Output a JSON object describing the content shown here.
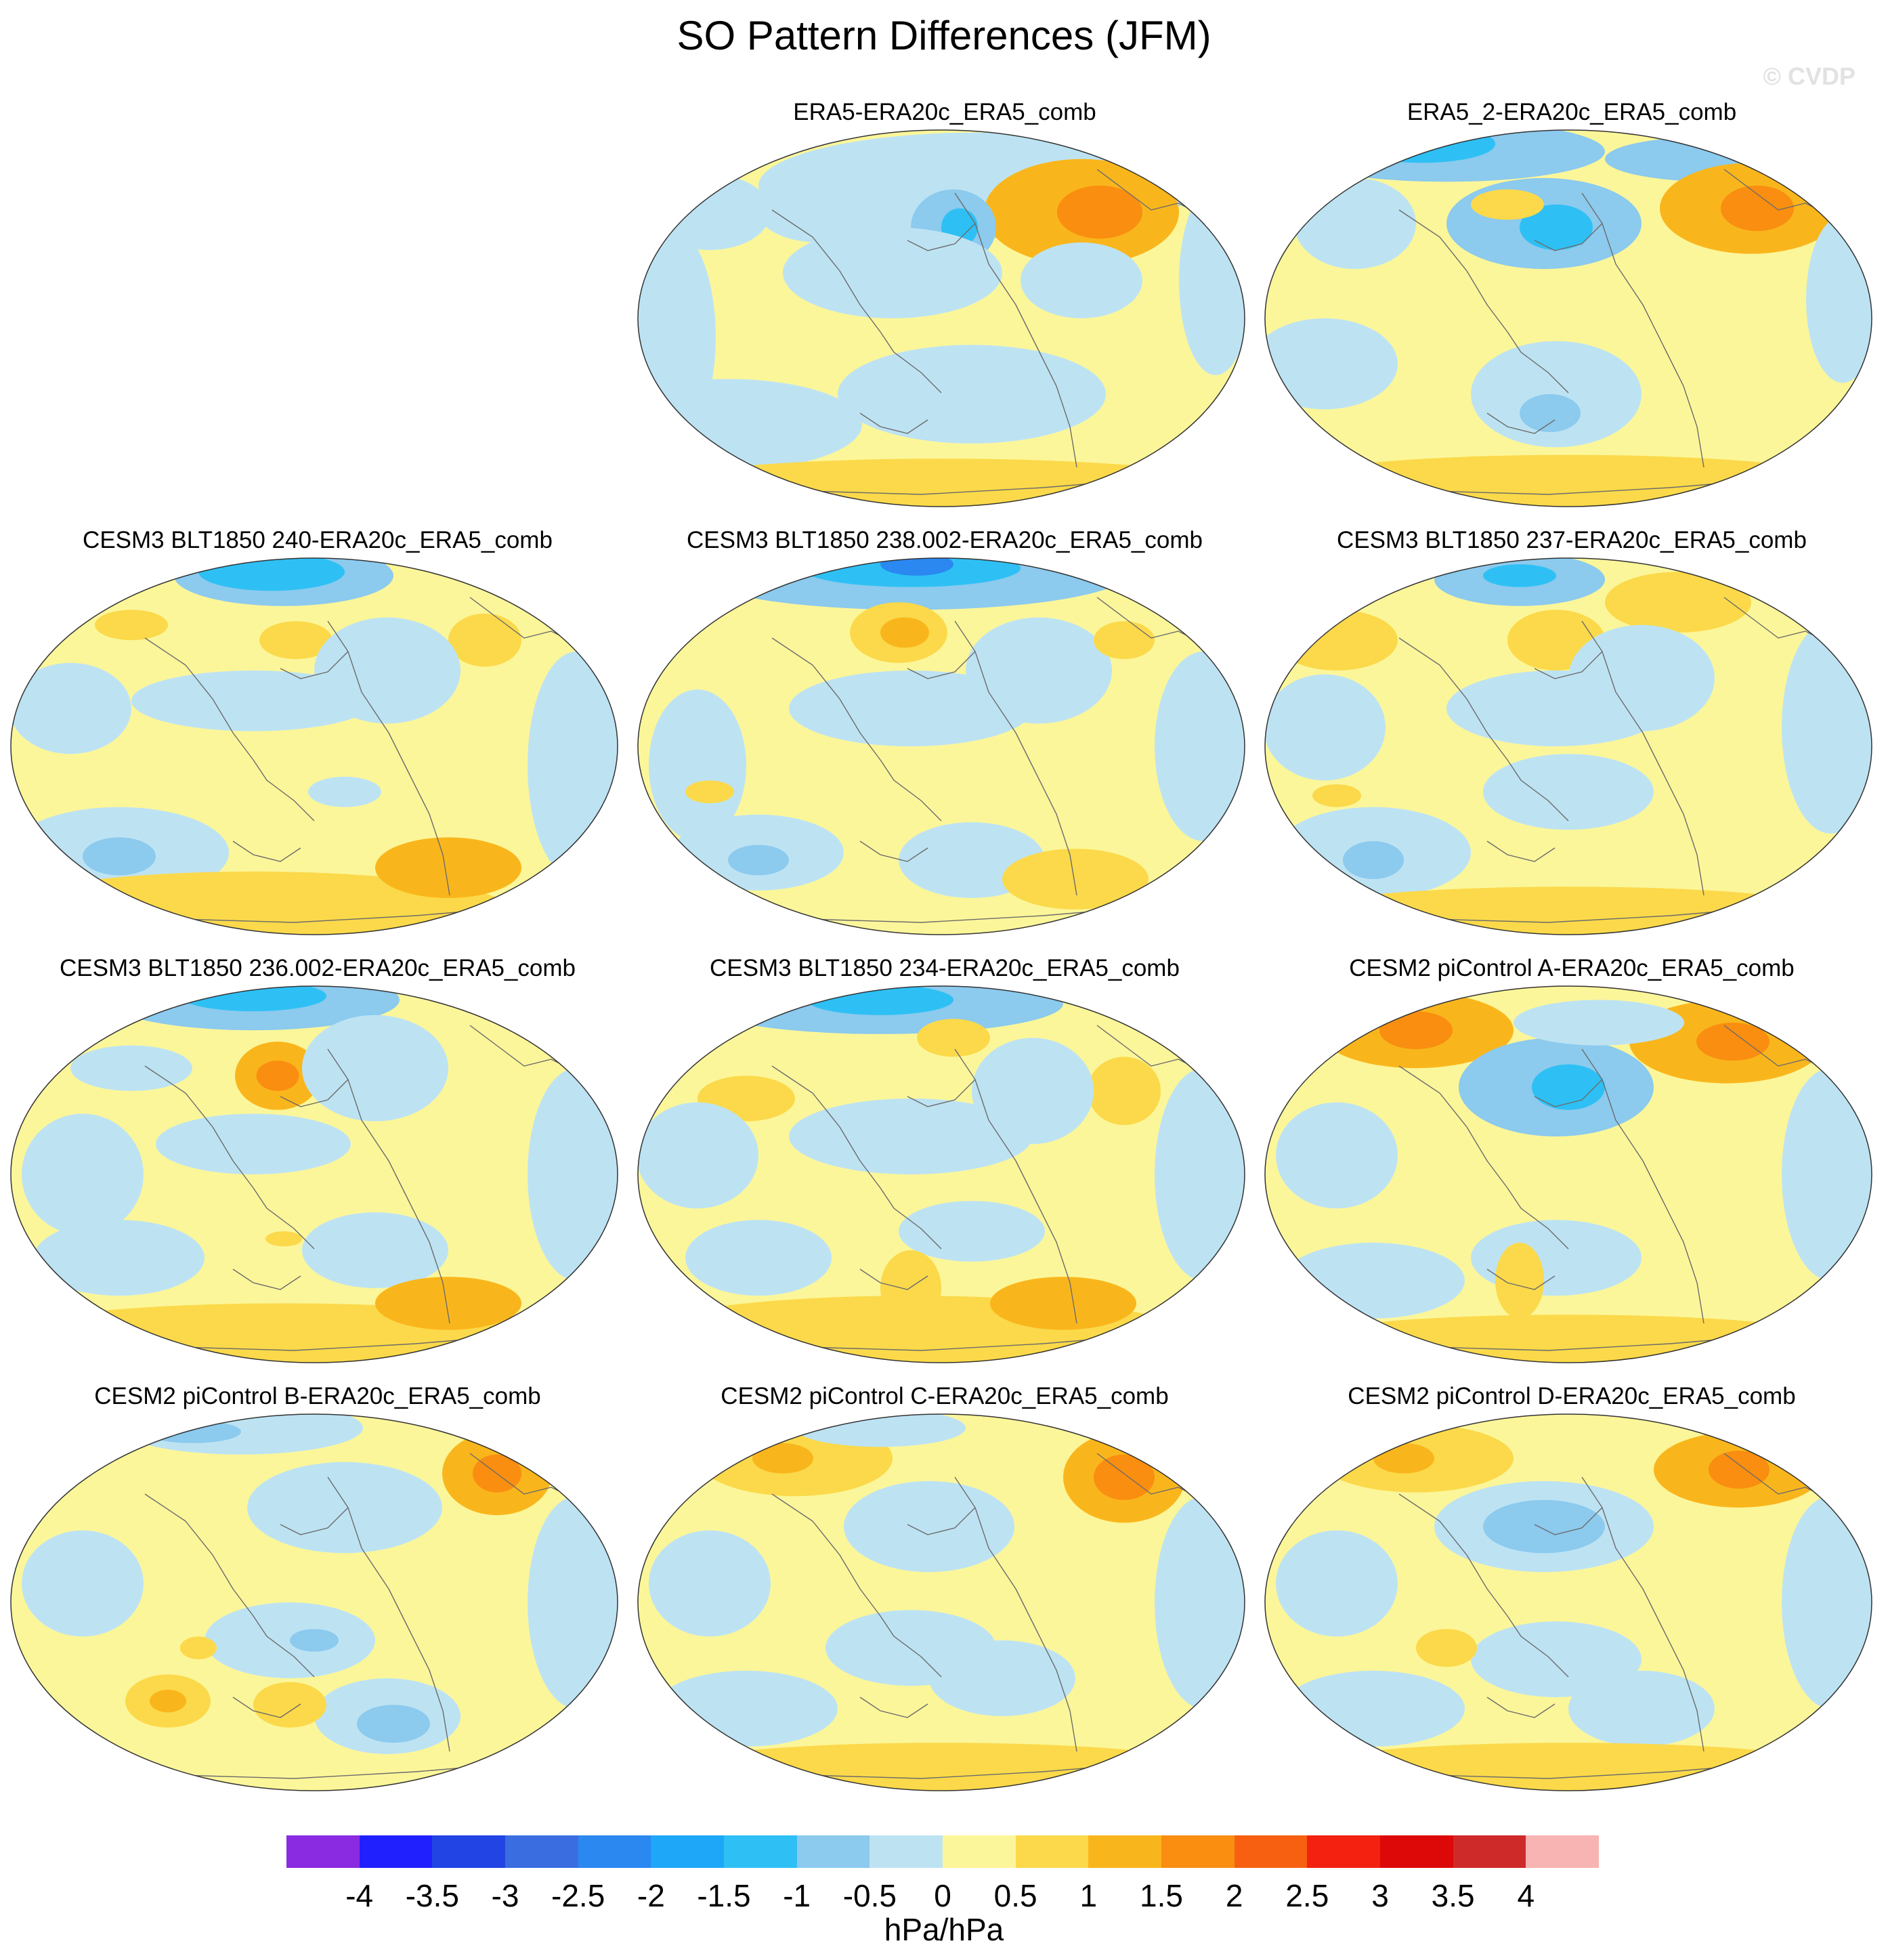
{
  "title": "SO Pattern Differences (JFM)",
  "watermark": "© CVDP",
  "units": "hPa/hPa",
  "colorbar": {
    "colors": [
      "#8a2be2",
      "#2020ff",
      "#2244e4",
      "#3a6ee0",
      "#2a88f0",
      "#1ea6f8",
      "#2ec0f4",
      "#8ccaee",
      "#bde3f3",
      "#fcf69a",
      "#fbd94a",
      "#f9b61c",
      "#f98e10",
      "#f66010",
      "#f42010",
      "#dd0808",
      "#cf2a2a",
      "#f8b3b3"
    ],
    "labels": [
      "-4",
      "-3.5",
      "-3",
      "-2.5",
      "-2",
      "-1.5",
      "-1",
      "-0.5",
      "0",
      "0.5",
      "1",
      "1.5",
      "2",
      "2.5",
      "3",
      "3.5",
      "4"
    ]
  },
  "panels": [
    {
      "title": "ERA5-ERA20c_ERA5_comb",
      "row": 0,
      "col": 1,
      "blobs": [
        [
          0.56,
          0.15,
          0.36,
          0.14,
          "#bde3f3"
        ],
        [
          0.73,
          0.22,
          0.16,
          0.14,
          "#f9b61c"
        ],
        [
          0.76,
          0.22,
          0.07,
          0.07,
          "#f98e10"
        ],
        [
          0.52,
          0.26,
          0.07,
          0.1,
          "#8ccaee"
        ],
        [
          0.53,
          0.26,
          0.03,
          0.05,
          "#2ec0f4"
        ],
        [
          0.12,
          0.22,
          0.1,
          0.1,
          "#bde3f3"
        ],
        [
          0.3,
          0.22,
          0.1,
          0.08,
          "#bde3f3"
        ],
        [
          0.42,
          0.38,
          0.18,
          0.12,
          "#bde3f3"
        ],
        [
          0.05,
          0.55,
          0.08,
          0.3,
          "#bde3f3"
        ],
        [
          0.15,
          0.78,
          0.22,
          0.12,
          "#bde3f3"
        ],
        [
          0.55,
          0.7,
          0.22,
          0.13,
          "#bde3f3"
        ],
        [
          0.95,
          0.4,
          0.06,
          0.25,
          "#bde3f3"
        ],
        [
          0.73,
          0.4,
          0.1,
          0.1,
          "#bde3f3"
        ],
        [
          0.5,
          0.95,
          0.5,
          0.08,
          "#fbd94a"
        ]
      ]
    },
    {
      "title": "ERA5_2-ERA20c_ERA5_comb",
      "row": 0,
      "col": 2,
      "blobs": [
        [
          0.3,
          0.06,
          0.26,
          0.08,
          "#8ccaee"
        ],
        [
          0.26,
          0.04,
          0.12,
          0.05,
          "#2ec0f4"
        ],
        [
          0.74,
          0.08,
          0.18,
          0.06,
          "#8ccaee"
        ],
        [
          0.46,
          0.25,
          0.16,
          0.12,
          "#8ccaee"
        ],
        [
          0.48,
          0.26,
          0.06,
          0.06,
          "#2ec0f4"
        ],
        [
          0.8,
          0.21,
          0.15,
          0.12,
          "#f9b61c"
        ],
        [
          0.81,
          0.21,
          0.06,
          0.06,
          "#f98e10"
        ],
        [
          0.4,
          0.2,
          0.06,
          0.04,
          "#fbd94a"
        ],
        [
          0.15,
          0.25,
          0.1,
          0.12,
          "#bde3f3"
        ],
        [
          0.1,
          0.62,
          0.12,
          0.12,
          "#bde3f3"
        ],
        [
          0.48,
          0.7,
          0.14,
          0.14,
          "#bde3f3"
        ],
        [
          0.47,
          0.75,
          0.05,
          0.05,
          "#8ccaee"
        ],
        [
          0.95,
          0.45,
          0.06,
          0.22,
          "#bde3f3"
        ],
        [
          0.5,
          0.94,
          0.48,
          0.08,
          "#fbd94a"
        ]
      ]
    },
    {
      "title": "CESM3 BLT1850 240-ERA20c_ERA5_comb",
      "row": 1,
      "col": 0,
      "blobs": [
        [
          0.45,
          0.05,
          0.18,
          0.08,
          "#8ccaee"
        ],
        [
          0.43,
          0.04,
          0.12,
          0.05,
          "#2ec0f4"
        ],
        [
          0.2,
          0.18,
          0.06,
          0.04,
          "#fbd94a"
        ],
        [
          0.78,
          0.22,
          0.06,
          0.07,
          "#fbd94a"
        ],
        [
          0.47,
          0.22,
          0.06,
          0.05,
          "#fbd94a"
        ],
        [
          0.4,
          0.38,
          0.2,
          0.08,
          "#bde3f3"
        ],
        [
          0.62,
          0.3,
          0.12,
          0.14,
          "#bde3f3"
        ],
        [
          0.1,
          0.4,
          0.1,
          0.12,
          "#bde3f3"
        ],
        [
          0.55,
          0.62,
          0.06,
          0.04,
          "#bde3f3"
        ],
        [
          0.18,
          0.78,
          0.18,
          0.12,
          "#bde3f3"
        ],
        [
          0.18,
          0.79,
          0.06,
          0.05,
          "#8ccaee"
        ],
        [
          0.93,
          0.55,
          0.08,
          0.3,
          "#bde3f3"
        ],
        [
          0.4,
          0.93,
          0.42,
          0.1,
          "#fbd94a"
        ],
        [
          0.72,
          0.82,
          0.12,
          0.08,
          "#f9b61c"
        ]
      ]
    },
    {
      "title": "CESM3 BLT1850 238.002-ERA20c_ERA5_comb",
      "row": 1,
      "col": 1,
      "blobs": [
        [
          0.45,
          0.04,
          0.36,
          0.1,
          "#8ccaee"
        ],
        [
          0.45,
          0.03,
          0.18,
          0.05,
          "#2ec0f4"
        ],
        [
          0.46,
          0.02,
          0.06,
          0.03,
          "#2a88f0"
        ],
        [
          0.43,
          0.2,
          0.08,
          0.08,
          "#fbd94a"
        ],
        [
          0.44,
          0.2,
          0.04,
          0.04,
          "#f9b61c"
        ],
        [
          0.45,
          0.4,
          0.2,
          0.1,
          "#bde3f3"
        ],
        [
          0.66,
          0.3,
          0.12,
          0.14,
          "#bde3f3"
        ],
        [
          0.8,
          0.22,
          0.05,
          0.05,
          "#fbd94a"
        ],
        [
          0.1,
          0.55,
          0.08,
          0.2,
          "#bde3f3"
        ],
        [
          0.2,
          0.78,
          0.14,
          0.1,
          "#bde3f3"
        ],
        [
          0.2,
          0.8,
          0.05,
          0.04,
          "#8ccaee"
        ],
        [
          0.55,
          0.8,
          0.12,
          0.1,
          "#bde3f3"
        ],
        [
          0.93,
          0.5,
          0.08,
          0.25,
          "#bde3f3"
        ],
        [
          0.72,
          0.85,
          0.12,
          0.08,
          "#fbd94a"
        ],
        [
          0.12,
          0.62,
          0.04,
          0.03,
          "#fbd94a"
        ]
      ]
    },
    {
      "title": "CESM3 BLT1850 237-ERA20c_ERA5_comb",
      "row": 1,
      "col": 2,
      "blobs": [
        [
          0.42,
          0.06,
          0.14,
          0.07,
          "#8ccaee"
        ],
        [
          0.42,
          0.05,
          0.06,
          0.03,
          "#2ec0f4"
        ],
        [
          0.48,
          0.22,
          0.08,
          0.08,
          "#fbd94a"
        ],
        [
          0.68,
          0.12,
          0.12,
          0.08,
          "#fbd94a"
        ],
        [
          0.12,
          0.22,
          0.1,
          0.08,
          "#fbd94a"
        ],
        [
          0.48,
          0.4,
          0.18,
          0.1,
          "#bde3f3"
        ],
        [
          0.62,
          0.32,
          0.12,
          0.14,
          "#bde3f3"
        ],
        [
          0.1,
          0.45,
          0.1,
          0.14,
          "#bde3f3"
        ],
        [
          0.5,
          0.62,
          0.14,
          0.1,
          "#bde3f3"
        ],
        [
          0.18,
          0.78,
          0.16,
          0.12,
          "#bde3f3"
        ],
        [
          0.18,
          0.8,
          0.05,
          0.05,
          "#8ccaee"
        ],
        [
          0.93,
          0.45,
          0.08,
          0.28,
          "#bde3f3"
        ],
        [
          0.5,
          0.94,
          0.45,
          0.07,
          "#fbd94a"
        ],
        [
          0.12,
          0.63,
          0.04,
          0.03,
          "#fbd94a"
        ]
      ]
    },
    {
      "title": "CESM3 BLT1850 236.002-ERA20c_ERA5_comb",
      "row": 2,
      "col": 0,
      "blobs": [
        [
          0.4,
          0.04,
          0.24,
          0.08,
          "#8ccaee"
        ],
        [
          0.4,
          0.03,
          0.12,
          0.04,
          "#2ec0f4"
        ],
        [
          0.44,
          0.24,
          0.07,
          0.09,
          "#f9b61c"
        ],
        [
          0.44,
          0.24,
          0.035,
          0.04,
          "#f98e10"
        ],
        [
          0.6,
          0.22,
          0.12,
          0.14,
          "#bde3f3"
        ],
        [
          0.2,
          0.22,
          0.1,
          0.06,
          "#bde3f3"
        ],
        [
          0.4,
          0.42,
          0.16,
          0.08,
          "#bde3f3"
        ],
        [
          0.12,
          0.5,
          0.1,
          0.16,
          "#bde3f3"
        ],
        [
          0.6,
          0.7,
          0.12,
          0.1,
          "#bde3f3"
        ],
        [
          0.18,
          0.72,
          0.14,
          0.1,
          "#bde3f3"
        ],
        [
          0.93,
          0.5,
          0.08,
          0.28,
          "#bde3f3"
        ],
        [
          0.45,
          0.93,
          0.48,
          0.09,
          "#fbd94a"
        ],
        [
          0.72,
          0.84,
          0.12,
          0.07,
          "#f9b61c"
        ],
        [
          0.45,
          0.67,
          0.03,
          0.02,
          "#fbd94a"
        ]
      ]
    },
    {
      "title": "CESM3 BLT1850 234-ERA20c_ERA5_comb",
      "row": 2,
      "col": 1,
      "blobs": [
        [
          0.4,
          0.05,
          0.3,
          0.08,
          "#8ccaee"
        ],
        [
          0.4,
          0.04,
          0.12,
          0.04,
          "#2ec0f4"
        ],
        [
          0.52,
          0.14,
          0.06,
          0.05,
          "#fbd94a"
        ],
        [
          0.8,
          0.28,
          0.06,
          0.09,
          "#fbd94a"
        ],
        [
          0.18,
          0.3,
          0.08,
          0.06,
          "#fbd94a"
        ],
        [
          0.45,
          0.4,
          0.2,
          0.1,
          "#bde3f3"
        ],
        [
          0.65,
          0.28,
          0.1,
          0.14,
          "#bde3f3"
        ],
        [
          0.1,
          0.45,
          0.1,
          0.14,
          "#bde3f3"
        ],
        [
          0.2,
          0.72,
          0.12,
          0.1,
          "#bde3f3"
        ],
        [
          0.55,
          0.65,
          0.12,
          0.08,
          "#bde3f3"
        ],
        [
          0.93,
          0.5,
          0.08,
          0.28,
          "#bde3f3"
        ],
        [
          0.45,
          0.92,
          0.45,
          0.1,
          "#fbd94a"
        ],
        [
          0.45,
          0.8,
          0.05,
          0.1,
          "#fbd94a"
        ],
        [
          0.7,
          0.84,
          0.12,
          0.07,
          "#f9b61c"
        ]
      ]
    },
    {
      "title": "CESM2 piControl A-ERA20c_ERA5_comb",
      "row": 2,
      "col": 2,
      "blobs": [
        [
          0.25,
          0.12,
          0.16,
          0.1,
          "#f9b61c"
        ],
        [
          0.25,
          0.12,
          0.06,
          0.05,
          "#f98e10"
        ],
        [
          0.76,
          0.15,
          0.16,
          0.11,
          "#f9b61c"
        ],
        [
          0.77,
          0.15,
          0.06,
          0.05,
          "#f98e10"
        ],
        [
          0.48,
          0.27,
          0.16,
          0.13,
          "#8ccaee"
        ],
        [
          0.5,
          0.27,
          0.06,
          0.06,
          "#2ec0f4"
        ],
        [
          0.55,
          0.1,
          0.14,
          0.06,
          "#bde3f3"
        ],
        [
          0.12,
          0.45,
          0.1,
          0.14,
          "#bde3f3"
        ],
        [
          0.48,
          0.72,
          0.14,
          0.1,
          "#bde3f3"
        ],
        [
          0.18,
          0.78,
          0.15,
          0.1,
          "#bde3f3"
        ],
        [
          0.93,
          0.5,
          0.08,
          0.28,
          "#bde3f3"
        ],
        [
          0.5,
          0.94,
          0.45,
          0.07,
          "#fbd94a"
        ],
        [
          0.42,
          0.78,
          0.04,
          0.1,
          "#fbd94a"
        ]
      ]
    },
    {
      "title": "CESM2 piControl B-ERA20c_ERA5_comb",
      "row": 3,
      "col": 0,
      "blobs": [
        [
          0.38,
          0.04,
          0.2,
          0.07,
          "#bde3f3"
        ],
        [
          0.3,
          0.05,
          0.08,
          0.03,
          "#8ccaee"
        ],
        [
          0.8,
          0.16,
          0.09,
          0.11,
          "#f9b61c"
        ],
        [
          0.8,
          0.16,
          0.04,
          0.05,
          "#f98e10"
        ],
        [
          0.55,
          0.25,
          0.16,
          0.12,
          "#bde3f3"
        ],
        [
          0.12,
          0.45,
          0.1,
          0.14,
          "#bde3f3"
        ],
        [
          0.46,
          0.6,
          0.14,
          0.1,
          "#bde3f3"
        ],
        [
          0.5,
          0.6,
          0.04,
          0.03,
          "#8ccaee"
        ],
        [
          0.62,
          0.8,
          0.12,
          0.1,
          "#bde3f3"
        ],
        [
          0.63,
          0.82,
          0.06,
          0.05,
          "#8ccaee"
        ],
        [
          0.26,
          0.76,
          0.07,
          0.07,
          "#fbd94a"
        ],
        [
          0.26,
          0.76,
          0.03,
          0.03,
          "#f9b61c"
        ],
        [
          0.46,
          0.77,
          0.06,
          0.06,
          "#fbd94a"
        ],
        [
          0.31,
          0.62,
          0.03,
          0.03,
          "#fbd94a"
        ],
        [
          0.93,
          0.5,
          0.08,
          0.28,
          "#bde3f3"
        ]
      ]
    },
    {
      "title": "CESM2 piControl C-ERA20c_ERA5_comb",
      "row": 3,
      "col": 1,
      "blobs": [
        [
          0.26,
          0.12,
          0.16,
          0.1,
          "#fbd94a"
        ],
        [
          0.24,
          0.12,
          0.05,
          0.04,
          "#f9b61c"
        ],
        [
          0.8,
          0.17,
          0.1,
          0.12,
          "#f9b61c"
        ],
        [
          0.8,
          0.17,
          0.05,
          0.06,
          "#f98e10"
        ],
        [
          0.4,
          0.04,
          0.14,
          0.05,
          "#bde3f3"
        ],
        [
          0.48,
          0.3,
          0.14,
          0.12,
          "#bde3f3"
        ],
        [
          0.12,
          0.45,
          0.1,
          0.14,
          "#bde3f3"
        ],
        [
          0.45,
          0.62,
          0.14,
          0.1,
          "#bde3f3"
        ],
        [
          0.6,
          0.7,
          0.12,
          0.1,
          "#bde3f3"
        ],
        [
          0.18,
          0.78,
          0.15,
          0.1,
          "#bde3f3"
        ],
        [
          0.93,
          0.5,
          0.08,
          0.28,
          "#bde3f3"
        ],
        [
          0.5,
          0.94,
          0.45,
          0.07,
          "#fbd94a"
        ]
      ]
    },
    {
      "title": "CESM2 piControl D-ERA20c_ERA5_comb",
      "row": 3,
      "col": 2,
      "blobs": [
        [
          0.25,
          0.12,
          0.16,
          0.09,
          "#fbd94a"
        ],
        [
          0.23,
          0.12,
          0.05,
          0.04,
          "#f9b61c"
        ],
        [
          0.78,
          0.15,
          0.14,
          0.1,
          "#f9b61c"
        ],
        [
          0.78,
          0.15,
          0.05,
          0.05,
          "#f98e10"
        ],
        [
          0.46,
          0.3,
          0.18,
          0.12,
          "#bde3f3"
        ],
        [
          0.46,
          0.3,
          0.1,
          0.07,
          "#8ccaee"
        ],
        [
          0.12,
          0.45,
          0.1,
          0.14,
          "#bde3f3"
        ],
        [
          0.48,
          0.65,
          0.14,
          0.1,
          "#bde3f3"
        ],
        [
          0.62,
          0.78,
          0.12,
          0.1,
          "#bde3f3"
        ],
        [
          0.18,
          0.78,
          0.15,
          0.1,
          "#bde3f3"
        ],
        [
          0.93,
          0.5,
          0.08,
          0.28,
          "#bde3f3"
        ],
        [
          0.5,
          0.94,
          0.45,
          0.07,
          "#fbd94a"
        ],
        [
          0.3,
          0.62,
          0.05,
          0.05,
          "#fbd94a"
        ]
      ]
    }
  ]
}
